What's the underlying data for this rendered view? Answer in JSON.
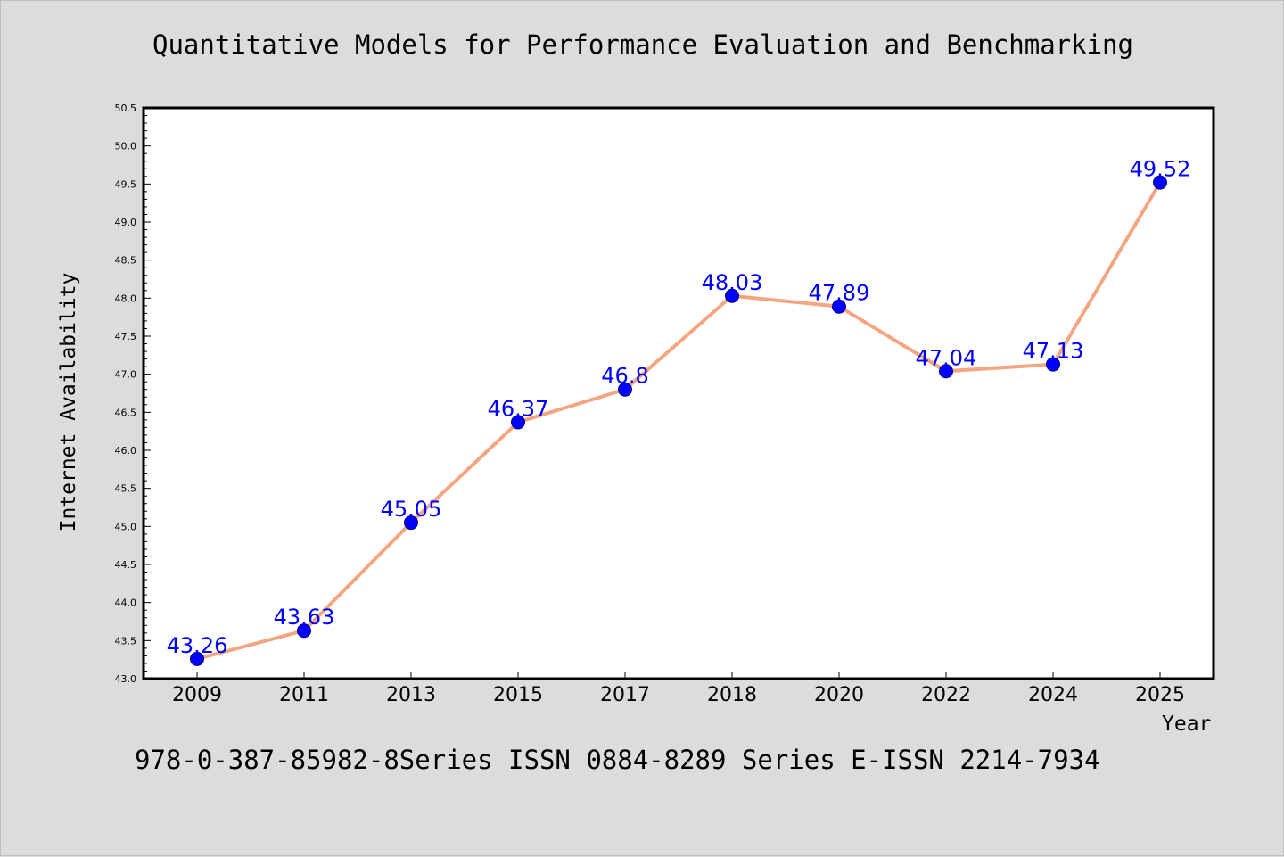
{
  "title": "Quantitative Models for Performance Evaluation and Benchmarking",
  "footer": "978-0-387-85982-8Series ISSN 0884-8289 Series E-ISSN 2214-7934",
  "colors": {
    "background": "#dcdcdc",
    "plot_area": "#ffffff",
    "line": "#f4a582",
    "marker": "#0000ff",
    "data_label": "#0000ff",
    "axis": "#000000"
  },
  "chart_data": {
    "type": "line",
    "title": "Quantitative Models for Performance Evaluation and Benchmarking",
    "xlabel": "Year",
    "ylabel": "Internet Availability",
    "categories": [
      "2009",
      "2011",
      "2013",
      "2015",
      "2017",
      "2018",
      "2020",
      "2022",
      "2024",
      "2025"
    ],
    "series": [
      {
        "values": [
          43.26,
          43.63,
          45.05,
          46.37,
          46.8,
          48.03,
          47.89,
          47.04,
          47.13,
          49.52
        ],
        "labels": [
          "43.26",
          "43.63",
          "45.05",
          "46.37",
          "46.8",
          "48.03",
          "47.89",
          "47.04",
          "47.13",
          "49.52"
        ]
      }
    ],
    "ylim": [
      43.0,
      50.5
    ],
    "yticks": [
      "43.0",
      "43.5",
      "44.0",
      "44.5",
      "45.0",
      "45.5",
      "46.0",
      "46.5",
      "47.0",
      "47.5",
      "48.0",
      "48.5",
      "49.0",
      "49.5",
      "50.0",
      "50.5"
    ],
    "grid": false,
    "legend": "none"
  }
}
